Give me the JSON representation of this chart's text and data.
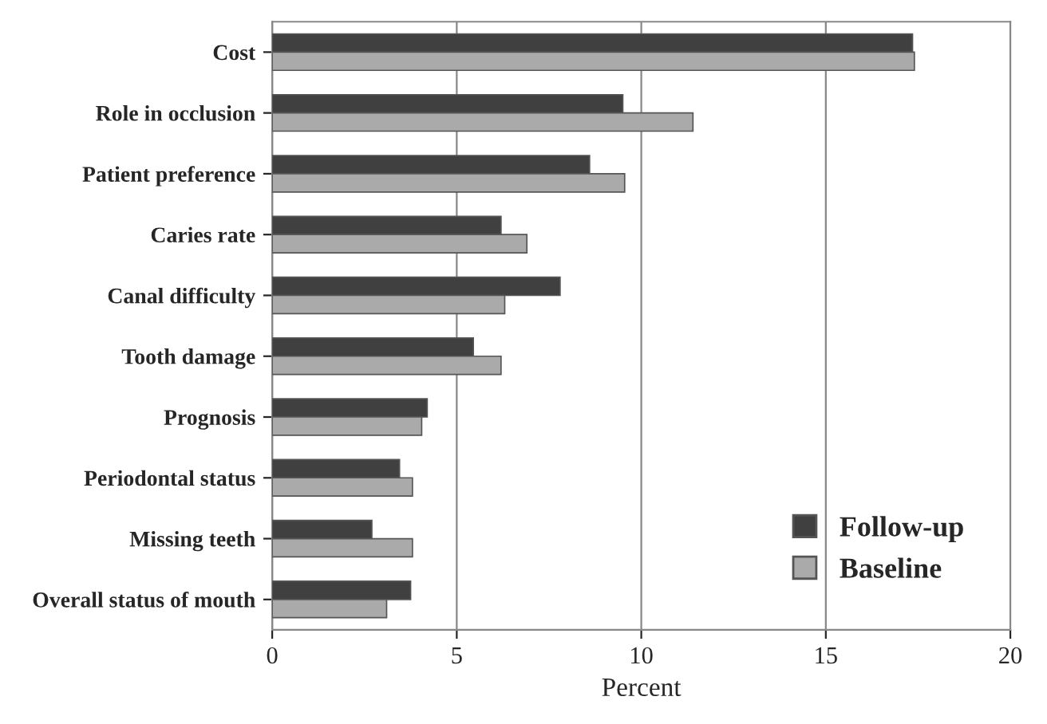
{
  "chart_data": {
    "type": "bar",
    "orientation": "horizontal",
    "xlabel": "Percent",
    "categories": [
      "Cost",
      "Role in occlusion",
      "Patient preference",
      "Caries rate",
      "Canal difficulty",
      "Tooth damage",
      "Prognosis",
      "Periodontal status",
      "Missing teeth",
      "Overall status of mouth"
    ],
    "series": [
      {
        "name": "Follow-up",
        "color": "#404040",
        "values": [
          17.35,
          9.5,
          8.6,
          6.2,
          7.8,
          5.45,
          4.2,
          3.45,
          2.7,
          3.75
        ]
      },
      {
        "name": "Baseline",
        "color": "#aaaaaa",
        "values": [
          17.4,
          11.4,
          9.55,
          6.9,
          6.3,
          6.2,
          4.05,
          3.8,
          3.8,
          3.1
        ]
      }
    ],
    "xlim": [
      0,
      20
    ],
    "xticks": [
      0,
      5,
      10,
      15,
      20
    ],
    "grid": "x",
    "legend": "bottom right"
  }
}
